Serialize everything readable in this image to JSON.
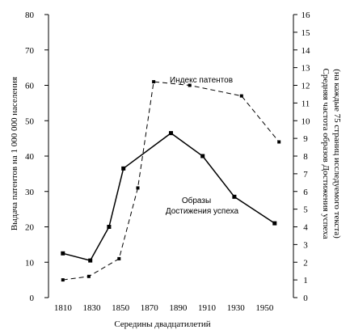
{
  "chart_data": {
    "type": "line",
    "xlabel": "Середины двадцатилетий",
    "ylabel_left": "Выдача патентов на 1 000 000 населения",
    "ylabel_right_line1": "Средняя частота образов Достижения успеха",
    "ylabel_right_line2": "(на каждые 75 страниц исследуемого текста)",
    "xlim": [
      1800,
      1970
    ],
    "x_ticks": [
      1810,
      1830,
      1850,
      1870,
      1890,
      1910,
      1930,
      1950
    ],
    "ylim_left": [
      0,
      80
    ],
    "y_ticks_left": [
      0,
      10,
      20,
      30,
      40,
      50,
      60,
      70,
      80
    ],
    "ylim_right": [
      0,
      16
    ],
    "y_ticks_right": [
      0,
      1,
      2,
      3,
      4,
      5,
      6,
      7,
      8,
      9,
      10,
      11,
      12,
      13,
      14,
      15,
      16
    ],
    "grid": false,
    "series": [
      {
        "name": "Индекс патентов",
        "axis": "left",
        "style": "dashed",
        "x": [
          1810,
          1828,
          1849,
          1862,
          1873,
          1898,
          1934,
          1960
        ],
        "y": [
          5,
          6,
          11,
          31,
          61,
          60,
          57,
          44
        ]
      },
      {
        "name_line1": "Образы",
        "name_line2": "Достижения успеха",
        "axis": "right",
        "style": "solid",
        "x": [
          1810,
          1829,
          1842,
          1852,
          1885,
          1907,
          1929,
          1957
        ],
        "y": [
          2.5,
          2.1,
          4.0,
          7.3,
          9.3,
          8.0,
          5.7,
          4.2
        ]
      }
    ],
    "colors": {
      "line": "#000000",
      "axis": "#000000"
    }
  }
}
